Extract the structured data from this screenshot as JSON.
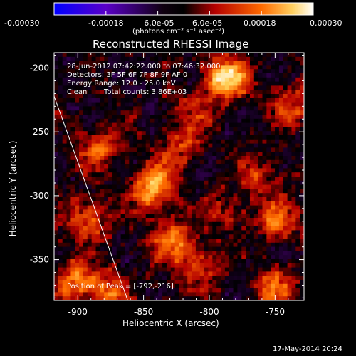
{
  "colorbar": {
    "ticks": [
      "-0.00030",
      "-0.00018",
      "−6.0e-05",
      "6.0e-05",
      "0.00018",
      "0.00030"
    ],
    "units_label": "(photons cm⁻² s⁻¹ asec⁻²)"
  },
  "chart_data": {
    "type": "heatmap",
    "title": "Reconstructed RHESSI Image",
    "xlabel": "Heliocentric X (arcsec)",
    "ylabel": "Heliocentric Y (arcsec)",
    "xlim": [
      -918,
      -728
    ],
    "ylim": [
      -382,
      -188
    ],
    "xticks": [
      -900,
      -850,
      -800,
      -750
    ],
    "yticks": [
      -200,
      -250,
      -300,
      -350
    ],
    "color_range": [
      -0.0003,
      0.0003
    ],
    "colormap": [
      "#0000ff",
      "#5a00c8",
      "#000000",
      "#c80000",
      "#ff7800",
      "#ffffff"
    ],
    "annotations": {
      "time_range": "28-Jun-2012 07:42:22.000 to 07:46:32.000",
      "detectors": "Detectors: 3F 5F 6F 7F 8F 9F AF 0",
      "energy_range": "Energy Range: 12.0 - 25.0 keV",
      "method": "Clean",
      "total_counts": "Total counts: 3.86E+03",
      "peak": "Position of Peak = [-792,-216]"
    },
    "limb_line": {
      "x": [
        -918,
        -862
      ],
      "y": [
        -222,
        -382
      ]
    },
    "sources": [
      {
        "x": -788,
        "y": -208,
        "amp": 0.0003
      },
      {
        "x": -842,
        "y": -293,
        "amp": 0.00026
      },
      {
        "x": -882,
        "y": -262,
        "amp": 0.00016
      },
      {
        "x": -893,
        "y": -318,
        "amp": 0.00016
      },
      {
        "x": -900,
        "y": -367,
        "amp": 0.00019
      },
      {
        "x": -875,
        "y": -375,
        "amp": 0.00015
      },
      {
        "x": -828,
        "y": -335,
        "amp": 0.00018
      },
      {
        "x": -808,
        "y": -355,
        "amp": 0.00012
      },
      {
        "x": -748,
        "y": -318,
        "amp": 0.00015
      },
      {
        "x": -750,
        "y": -372,
        "amp": 0.00016
      },
      {
        "x": -738,
        "y": -230,
        "amp": 0.00014
      },
      {
        "x": -820,
        "y": -262,
        "amp": 0.00012
      },
      {
        "x": -812,
        "y": -235,
        "amp": 0.0001
      },
      {
        "x": -762,
        "y": -282,
        "amp": 0.0001
      },
      {
        "x": -788,
        "y": -310,
        "amp": 9e-05
      }
    ]
  },
  "footer": {
    "timestamp": "17-May-2014 20:24"
  }
}
